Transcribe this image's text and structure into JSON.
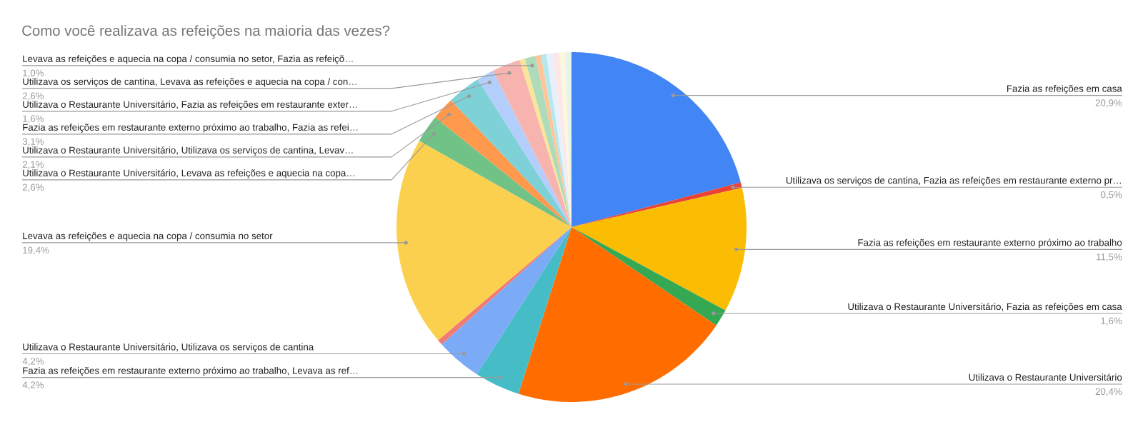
{
  "chart_data": {
    "type": "pie",
    "title": "Como você realizava as refeições na maioria das vezes?",
    "categories": [
      "Fazia as refeições em casa",
      "Utilizava os serviços de cantina, Fazia as refeições em restaurante externo pr…",
      "Fazia as refeições em restaurante externo próximo ao trabalho",
      "Utilizava o Restaurante Universitário, Fazia as refeições em casa",
      "Utilizava o Restaurante Universitário",
      "Fazia as refeições em restaurante externo próximo ao trabalho, Levava as ref…",
      "Utilizava o Restaurante Universitário, Utilizava os serviços de cantina",
      null,
      "Levava as refeições e aquecia na copa / consumia no setor",
      "Utilizava o Restaurante Universitário, Levava as refeições e aquecia na copa…",
      "Utilizava o Restaurante Universitário, Utilizava os serviços de cantina, Levav…",
      "Fazia as refeições em restaurante externo próximo ao trabalho, Fazia as refei…",
      "Utilizava o Restaurante Universitário, Fazia as refeições em restaurante exter…",
      "Utilizava os serviços de cantina, Levava as refeições e aquecia na copa / con…",
      null,
      "Levava as refeições e aquecia na copa / consumia no setor, Fazia as refeiçõ…",
      null,
      null,
      null,
      null,
      null,
      null
    ],
    "values": [
      20.9,
      0.5,
      11.5,
      1.6,
      20.4,
      4.2,
      4.2,
      0.5,
      19.4,
      2.6,
      2.1,
      3.1,
      1.6,
      2.6,
      0.5,
      1.0,
      0.5,
      0.5,
      0.6,
      0.6,
      0.5,
      0.6
    ],
    "value_labels": [
      "20,9%",
      "0,5%",
      "11,5%",
      "1,6%",
      "20,4%",
      "4,2%",
      "4,2%",
      null,
      "19,4%",
      "2,6%",
      "2,1%",
      "3,1%",
      "1,6%",
      "2,6%",
      null,
      "1,0%",
      null,
      null,
      null,
      null,
      null,
      null
    ],
    "colors": [
      "#4285f4",
      "#ea4335",
      "#fbbc04",
      "#34a853",
      "#ff6d01",
      "#46bdc6",
      "#7baaf7",
      "#f07b72",
      "#fcd04f",
      "#71c287",
      "#ff994d",
      "#7ed1d7",
      "#b3cefb",
      "#f7b4ae",
      "#fde49b",
      "#aedcba",
      "#ffc599",
      "#b5e8eb",
      "#e8f0fe",
      "#fce8e6",
      "#fef7e0",
      "#e6f4ea"
    ]
  }
}
